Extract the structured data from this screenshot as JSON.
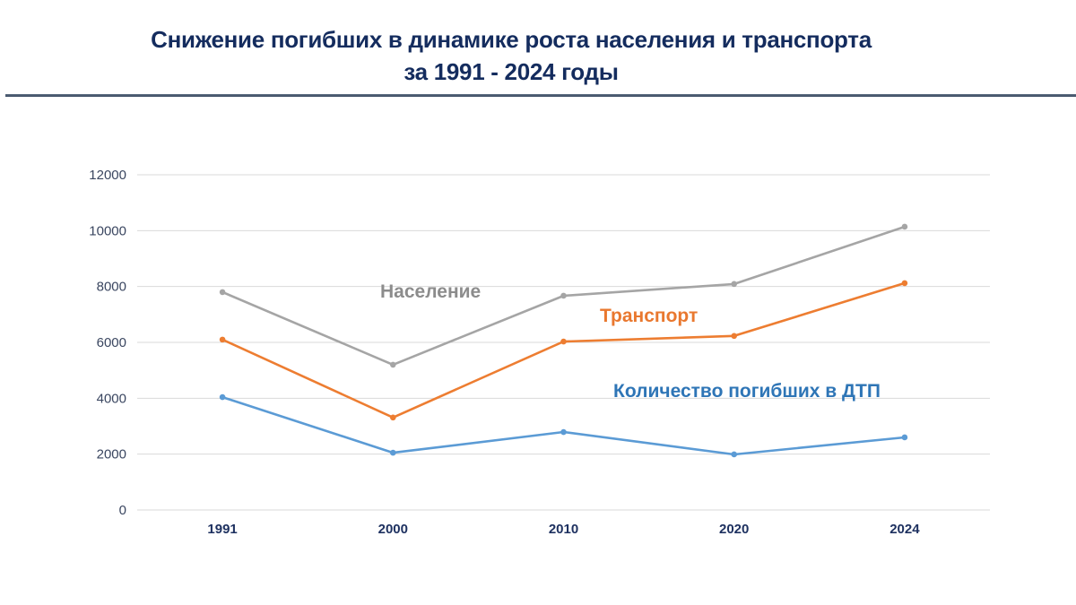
{
  "header": {
    "title_line1": "Снижение погибших в динамике роста населения и транспорта",
    "title_line2": "за 1991 - 2024 годы"
  },
  "chart_data": {
    "type": "line",
    "title": "Снижение погибших в динамике роста населения и транспорта за 1991 - 2024 годы",
    "xlabel": "",
    "ylabel": "",
    "categories": [
      "1991",
      "2000",
      "2010",
      "2020",
      "2024"
    ],
    "ylim": [
      0,
      12000
    ],
    "yticks": [
      0,
      2000,
      4000,
      6000,
      8000,
      10000,
      12000
    ],
    "grid": true,
    "legend": "inline labels",
    "series": [
      {
        "name": "Население",
        "color": "#a5a5a5",
        "values": [
          7800,
          5200,
          7670,
          8090,
          10140
        ]
      },
      {
        "name": "Транспорт",
        "color": "#ed7d31",
        "values": [
          6100,
          3310,
          6030,
          6230,
          8120
        ]
      },
      {
        "name": "Количество погибших в ДТП",
        "color": "#5b9bd5",
        "values": [
          4040,
          2050,
          2790,
          1990,
          2600
        ]
      }
    ],
    "annotations": [
      {
        "text": "Население",
        "color": "#8c8c8c"
      },
      {
        "text": "Транспорт",
        "color": "#e9782f"
      },
      {
        "text": "Количество погибших в ДТП",
        "color": "#2e75b6"
      }
    ]
  }
}
